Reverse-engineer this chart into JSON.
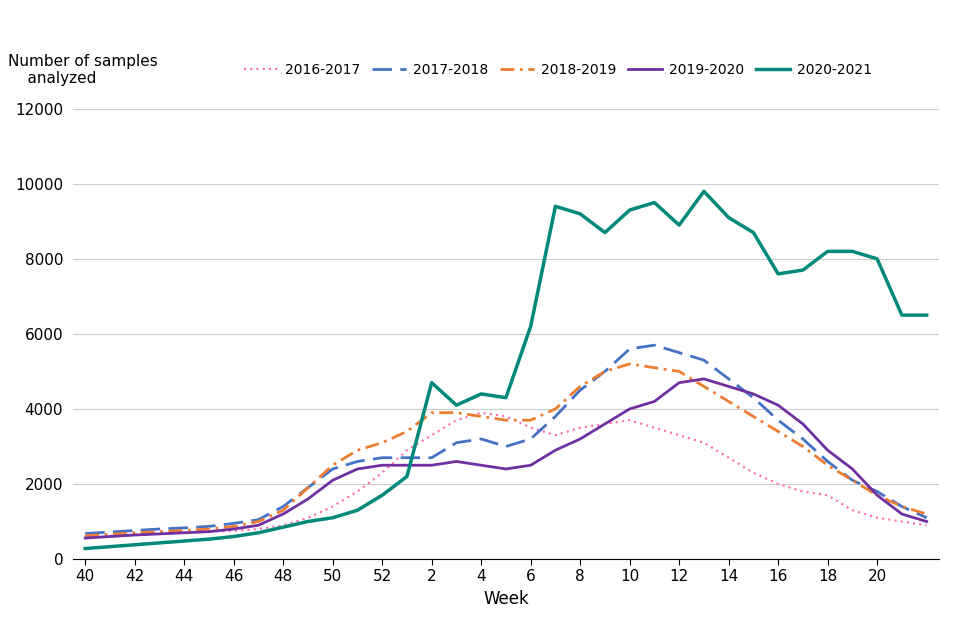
{
  "xlabel": "Week",
  "ylim": [
    0,
    12000
  ],
  "yticks": [
    0,
    2000,
    4000,
    6000,
    8000,
    10000,
    12000
  ],
  "xtick_labels": [
    "40",
    "42",
    "44",
    "46",
    "48",
    "50",
    "52",
    "2",
    "4",
    "6",
    "8",
    "10",
    "12",
    "14",
    "16",
    "18",
    "20"
  ],
  "xtick_positions": [
    0,
    2,
    4,
    6,
    8,
    10,
    12,
    14,
    16,
    18,
    20,
    22,
    24,
    26,
    28,
    30,
    32
  ],
  "seasons": {
    "2016-2017": {
      "color": "#ff69b4",
      "linestyle": "dotted",
      "linewidth": 1.5,
      "values": [
        550,
        620,
        650,
        680,
        700,
        730,
        750,
        800,
        900,
        1100,
        1400,
        1800,
        2300,
        2900,
        3300,
        3700,
        3900,
        3800,
        3500,
        3300,
        3500,
        3600,
        3700,
        3500,
        3300,
        3100,
        2700,
        2300,
        2000,
        1800,
        1700,
        1300,
        1100,
        1000,
        900
      ]
    },
    "2017-2018": {
      "color": "#4472c4",
      "linestyle": "dashed",
      "linewidth": 2.0,
      "values": [
        680,
        720,
        760,
        800,
        830,
        870,
        950,
        1050,
        1400,
        1900,
        2400,
        2600,
        2700,
        2700,
        2700,
        3100,
        3200,
        3000,
        3200,
        3800,
        4500,
        5000,
        5600,
        5700,
        5500,
        5300,
        4800,
        4300,
        3700,
        3200,
        2600,
        2100,
        1800,
        1400,
        1100
      ]
    },
    "2018-2019": {
      "color": "#ed7d31",
      "linestyle": "dashdot",
      "linewidth": 2.0,
      "values": [
        620,
        660,
        700,
        730,
        760,
        800,
        870,
        1000,
        1300,
        1900,
        2500,
        2900,
        3100,
        3400,
        3900,
        3900,
        3800,
        3700,
        3700,
        4000,
        4600,
        5000,
        5200,
        5100,
        5000,
        4600,
        4200,
        3800,
        3400,
        3000,
        2500,
        2100,
        1700,
        1400,
        1200
      ]
    },
    "2019-2020": {
      "color": "#7030a0",
      "linestyle": "solid",
      "linewidth": 2.0,
      "values": [
        560,
        600,
        640,
        670,
        700,
        730,
        800,
        900,
        1200,
        1600,
        2100,
        2400,
        2500,
        2500,
        2500,
        2600,
        2500,
        2400,
        2500,
        2900,
        3200,
        3600,
        4000,
        4200,
        4700,
        4800,
        4600,
        4400,
        4100,
        3600,
        2900,
        2400,
        1700,
        1200,
        1000
      ]
    },
    "2020-2021": {
      "color": "#00897b",
      "linestyle": "solid",
      "linewidth": 2.5,
      "values": [
        280,
        330,
        380,
        430,
        480,
        530,
        600,
        700,
        850,
        1000,
        1100,
        1300,
        1700,
        2200,
        4700,
        4100,
        4400,
        4300,
        6200,
        9400,
        9200,
        8700,
        9300,
        9500,
        8900,
        9800,
        9100,
        8700,
        7600,
        7700,
        8200,
        8200,
        8000,
        6500,
        6500
      ]
    }
  },
  "background_color": "#ffffff",
  "grid_color": "#cccccc"
}
